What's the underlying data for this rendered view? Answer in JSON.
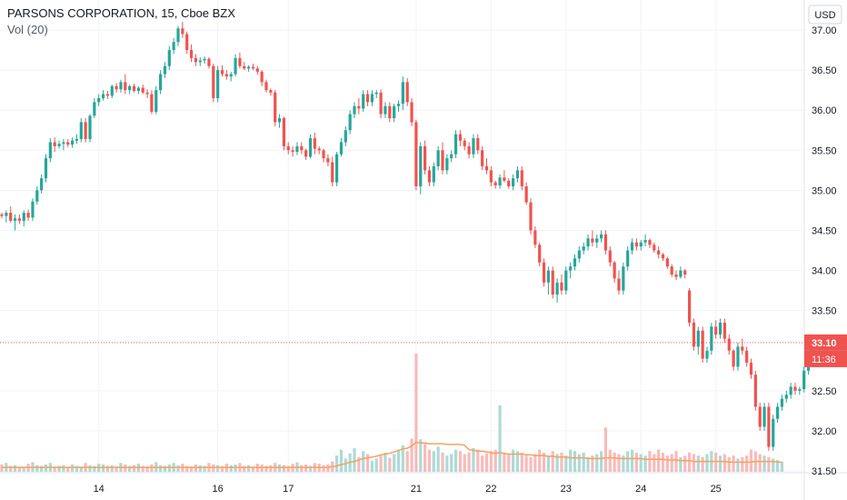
{
  "header": {
    "symbol_line": "PARSONS CORPORATION, 15, Cboe BZX",
    "volume_line": "Vol (20)"
  },
  "price_axis": {
    "currency": "USD",
    "last_price_label": "33.10",
    "countdown_label": "11:36"
  },
  "colors": {
    "up": "#26a69a",
    "down": "#ef5350",
    "up_volume": "#a5d6d0",
    "down_volume": "#f7b4b3",
    "volume_ma": "#f5a25d",
    "grid": "#f0f3fa",
    "price_line": "#ef5350"
  },
  "chart_data": {
    "type": "candlestick",
    "title": "PARSONS CORPORATION, 15, Cboe BZX",
    "currency": "USD",
    "x_tick_labels": [
      "14",
      "16",
      "17",
      "21",
      "22",
      "23",
      "24",
      "25"
    ],
    "y_tick_labels": [
      "37.00",
      "36.50",
      "36.00",
      "35.50",
      "35.00",
      "34.50",
      "34.00",
      "33.50",
      "32.50",
      "32.00",
      "31.50"
    ],
    "ylim": [
      31.5,
      37.1
    ],
    "grid": true,
    "last_price": 33.1,
    "volume_indicator": "Vol (20)",
    "session_starts": [
      {
        "label": "14",
        "index": 22
      },
      {
        "label": "16",
        "index": 49
      },
      {
        "label": "17",
        "index": 65
      },
      {
        "label": "21",
        "index": 94
      },
      {
        "label": "22",
        "index": 111
      },
      {
        "label": "23",
        "index": 128
      },
      {
        "label": "24",
        "index": 145
      },
      {
        "label": "25",
        "index": 162
      }
    ],
    "ohlc": [
      [
        34.7,
        34.72,
        34.65,
        34.68
      ],
      [
        34.68,
        34.75,
        34.6,
        34.72
      ],
      [
        34.72,
        34.8,
        34.6,
        34.62
      ],
      [
        34.62,
        34.7,
        34.5,
        34.65
      ],
      [
        34.65,
        34.7,
        34.58,
        34.62
      ],
      [
        34.62,
        34.75,
        34.55,
        34.72
      ],
      [
        34.72,
        34.76,
        34.62,
        34.66
      ],
      [
        34.66,
        34.9,
        34.62,
        34.86
      ],
      [
        34.86,
        35.05,
        34.82,
        35.0
      ],
      [
        35.0,
        35.2,
        34.96,
        35.15
      ],
      [
        35.15,
        35.45,
        35.1,
        35.4
      ],
      [
        35.4,
        35.65,
        35.35,
        35.6
      ],
      [
        35.6,
        35.66,
        35.48,
        35.55
      ],
      [
        35.55,
        35.62,
        35.52,
        35.58
      ],
      [
        35.58,
        35.64,
        35.5,
        35.6
      ],
      [
        35.6,
        35.64,
        35.54,
        35.57
      ],
      [
        35.57,
        35.66,
        35.53,
        35.62
      ],
      [
        35.62,
        35.7,
        35.58,
        35.64
      ],
      [
        35.64,
        35.9,
        35.6,
        35.85
      ],
      [
        35.85,
        35.9,
        35.6,
        35.64
      ],
      [
        35.64,
        35.95,
        35.6,
        35.93
      ],
      [
        35.93,
        36.15,
        35.9,
        36.1
      ],
      [
        36.1,
        36.2,
        36.05,
        36.15
      ],
      [
        36.15,
        36.25,
        36.12,
        36.2
      ],
      [
        36.2,
        36.24,
        36.14,
        36.18
      ],
      [
        36.18,
        36.32,
        36.15,
        36.3
      ],
      [
        36.3,
        36.34,
        36.22,
        36.26
      ],
      [
        36.26,
        36.38,
        36.22,
        36.35
      ],
      [
        36.35,
        36.45,
        36.2,
        36.25
      ],
      [
        36.25,
        36.32,
        36.2,
        36.3
      ],
      [
        36.3,
        36.33,
        36.22,
        36.24
      ],
      [
        36.24,
        36.3,
        36.2,
        36.28
      ],
      [
        36.28,
        36.32,
        36.2,
        36.22
      ],
      [
        36.22,
        36.26,
        36.15,
        36.2
      ],
      [
        36.2,
        36.25,
        35.95,
        35.98
      ],
      [
        35.98,
        36.3,
        35.95,
        36.25
      ],
      [
        36.25,
        36.5,
        36.2,
        36.45
      ],
      [
        36.45,
        36.6,
        36.4,
        36.55
      ],
      [
        36.55,
        36.8,
        36.5,
        36.75
      ],
      [
        36.75,
        36.9,
        36.7,
        36.85
      ],
      [
        36.85,
        37.05,
        36.8,
        37.02
      ],
      [
        37.02,
        37.1,
        36.9,
        36.95
      ],
      [
        36.95,
        36.98,
        36.7,
        36.75
      ],
      [
        36.75,
        36.82,
        36.6,
        36.65
      ],
      [
        36.65,
        36.7,
        36.55,
        36.6
      ],
      [
        36.6,
        36.66,
        36.55,
        36.62
      ],
      [
        36.62,
        36.67,
        36.58,
        36.64
      ],
      [
        36.64,
        36.66,
        36.52,
        36.55
      ],
      [
        36.55,
        36.58,
        36.1,
        36.15
      ],
      [
        36.15,
        36.55,
        36.1,
        36.5
      ],
      [
        36.5,
        36.56,
        36.42,
        36.45
      ],
      [
        36.45,
        36.5,
        36.38,
        36.42
      ],
      [
        36.42,
        36.48,
        36.36,
        36.45
      ],
      [
        36.45,
        36.7,
        36.42,
        36.65
      ],
      [
        36.65,
        36.72,
        36.52,
        36.55
      ],
      [
        36.55,
        36.6,
        36.5,
        36.52
      ],
      [
        36.52,
        36.56,
        36.48,
        36.54
      ],
      [
        36.54,
        36.58,
        36.5,
        36.52
      ],
      [
        36.52,
        36.55,
        36.44,
        36.48
      ],
      [
        36.48,
        36.5,
        36.3,
        36.35
      ],
      [
        36.35,
        36.38,
        36.22,
        36.25
      ],
      [
        36.25,
        36.27,
        36.18,
        36.22
      ],
      [
        36.22,
        36.25,
        35.8,
        35.85
      ],
      [
        35.85,
        35.95,
        35.78,
        35.9
      ],
      [
        35.9,
        35.92,
        35.5,
        35.55
      ],
      [
        35.55,
        35.6,
        35.45,
        35.5
      ],
      [
        35.5,
        35.55,
        35.42,
        35.48
      ],
      [
        35.48,
        35.6,
        35.44,
        35.55
      ],
      [
        35.55,
        35.6,
        35.45,
        35.5
      ],
      [
        35.5,
        35.52,
        35.38,
        35.42
      ],
      [
        35.42,
        35.7,
        35.4,
        35.65
      ],
      [
        35.65,
        35.72,
        35.45,
        35.52
      ],
      [
        35.52,
        35.55,
        35.45,
        35.5
      ],
      [
        35.5,
        35.52,
        35.35,
        35.4
      ],
      [
        35.4,
        35.45,
        35.3,
        35.35
      ],
      [
        35.35,
        35.42,
        35.05,
        35.1
      ],
      [
        35.1,
        35.48,
        35.05,
        35.45
      ],
      [
        35.45,
        35.65,
        35.42,
        35.6
      ],
      [
        35.6,
        35.8,
        35.55,
        35.75
      ],
      [
        35.75,
        36.0,
        35.7,
        35.95
      ],
      [
        35.95,
        36.1,
        35.9,
        36.05
      ],
      [
        36.05,
        36.15,
        35.95,
        36.02
      ],
      [
        36.02,
        36.25,
        35.98,
        36.2
      ],
      [
        36.2,
        36.25,
        36.05,
        36.1
      ],
      [
        36.1,
        36.25,
        36.05,
        36.2
      ],
      [
        36.2,
        36.25,
        36.15,
        36.22
      ],
      [
        36.22,
        36.26,
        35.9,
        35.95
      ],
      [
        35.95,
        36.1,
        35.9,
        36.05
      ],
      [
        36.05,
        36.1,
        35.85,
        35.9
      ],
      [
        35.9,
        36.08,
        35.85,
        36.05
      ],
      [
        36.05,
        36.12,
        35.98,
        36.08
      ],
      [
        36.08,
        36.42,
        36.0,
        36.35
      ],
      [
        36.35,
        36.4,
        36.05,
        36.1
      ],
      [
        36.1,
        36.15,
        35.8,
        35.85
      ],
      [
        35.85,
        35.88,
        35.0,
        35.05
      ],
      [
        35.05,
        35.6,
        34.95,
        35.55
      ],
      [
        35.55,
        35.62,
        35.2,
        35.25
      ],
      [
        35.25,
        35.3,
        35.05,
        35.1
      ],
      [
        35.1,
        35.35,
        35.05,
        35.3
      ],
      [
        35.3,
        35.55,
        35.25,
        35.5
      ],
      [
        35.5,
        35.6,
        35.2,
        35.25
      ],
      [
        35.25,
        35.45,
        35.2,
        35.4
      ],
      [
        35.4,
        35.5,
        35.35,
        35.45
      ],
      [
        35.45,
        35.75,
        35.4,
        35.7
      ],
      [
        35.7,
        35.75,
        35.55,
        35.62
      ],
      [
        35.62,
        35.65,
        35.5,
        35.55
      ],
      [
        35.55,
        35.6,
        35.4,
        35.45
      ],
      [
        35.45,
        35.7,
        35.4,
        35.65
      ],
      [
        35.65,
        35.7,
        35.45,
        35.5
      ],
      [
        35.5,
        35.55,
        35.25,
        35.3
      ],
      [
        35.3,
        35.4,
        35.2,
        35.25
      ],
      [
        35.25,
        35.3,
        35.05,
        35.1
      ],
      [
        35.1,
        35.12,
        35.02,
        35.06
      ],
      [
        35.06,
        35.2,
        35.02,
        35.16
      ],
      [
        35.16,
        35.25,
        35.1,
        35.12
      ],
      [
        35.12,
        35.15,
        35.02,
        35.05
      ],
      [
        35.05,
        35.2,
        35.0,
        35.15
      ],
      [
        35.15,
        35.3,
        35.1,
        35.25
      ],
      [
        35.25,
        35.3,
        35.0,
        35.05
      ],
      [
        35.05,
        35.1,
        34.82,
        34.85
      ],
      [
        34.85,
        34.9,
        34.45,
        34.5
      ],
      [
        34.5,
        34.55,
        34.28,
        34.32
      ],
      [
        34.32,
        34.35,
        34.05,
        34.1
      ],
      [
        34.1,
        34.15,
        33.8,
        33.85
      ],
      [
        33.85,
        34.05,
        33.7,
        34.0
      ],
      [
        34.0,
        34.05,
        33.65,
        33.7
      ],
      [
        33.7,
        33.9,
        33.6,
        33.85
      ],
      [
        33.85,
        33.95,
        33.7,
        33.75
      ],
      [
        33.75,
        34.05,
        33.7,
        34.0
      ],
      [
        34.0,
        34.1,
        33.9,
        34.05
      ],
      [
        34.05,
        34.2,
        34.0,
        34.15
      ],
      [
        34.15,
        34.3,
        34.1,
        34.25
      ],
      [
        34.25,
        34.35,
        34.2,
        34.3
      ],
      [
        34.3,
        34.45,
        34.25,
        34.4
      ],
      [
        34.4,
        34.5,
        34.3,
        34.35
      ],
      [
        34.35,
        34.45,
        34.28,
        34.4
      ],
      [
        34.4,
        34.5,
        34.35,
        34.45
      ],
      [
        34.45,
        34.5,
        34.2,
        34.25
      ],
      [
        34.25,
        34.3,
        34.05,
        34.1
      ],
      [
        34.1,
        34.12,
        33.85,
        33.9
      ],
      [
        33.9,
        34.0,
        33.7,
        33.75
      ],
      [
        33.75,
        34.1,
        33.7,
        34.05
      ],
      [
        34.05,
        34.3,
        34.0,
        34.25
      ],
      [
        34.25,
        34.4,
        34.2,
        34.35
      ],
      [
        34.35,
        34.4,
        34.25,
        34.3
      ],
      [
        34.3,
        34.38,
        34.25,
        34.35
      ],
      [
        34.35,
        34.45,
        34.3,
        34.38
      ],
      [
        34.38,
        34.4,
        34.28,
        34.32
      ],
      [
        34.32,
        34.35,
        34.22,
        34.25
      ],
      [
        34.25,
        34.3,
        34.15,
        34.2
      ],
      [
        34.2,
        34.22,
        34.12,
        34.15
      ],
      [
        34.15,
        34.17,
        34.02,
        34.05
      ],
      [
        34.05,
        34.08,
        33.92,
        33.95
      ],
      [
        33.95,
        34.0,
        33.88,
        33.92
      ],
      [
        33.92,
        34.05,
        33.9,
        34.0
      ],
      [
        34.0,
        34.02,
        33.9,
        33.95
      ],
      [
        33.75,
        33.78,
        33.3,
        33.35
      ],
      [
        33.35,
        33.4,
        33.0,
        33.05
      ],
      [
        33.05,
        33.3,
        32.95,
        33.25
      ],
      [
        33.25,
        33.3,
        32.85,
        32.9
      ],
      [
        32.9,
        33.05,
        32.85,
        33.0
      ],
      [
        33.0,
        33.35,
        32.95,
        33.3
      ],
      [
        33.3,
        33.38,
        33.15,
        33.2
      ],
      [
        33.2,
        33.4,
        33.15,
        33.35
      ],
      [
        33.35,
        33.4,
        33.1,
        33.15
      ],
      [
        33.15,
        33.2,
        32.95,
        33.0
      ],
      [
        33.0,
        33.02,
        32.75,
        32.8
      ],
      [
        32.8,
        33.1,
        32.75,
        33.05
      ],
      [
        33.05,
        33.15,
        32.95,
        33.0
      ],
      [
        33.0,
        33.05,
        32.8,
        32.85
      ],
      [
        32.85,
        32.9,
        32.65,
        32.7
      ],
      [
        32.7,
        32.75,
        32.25,
        32.3
      ],
      [
        32.3,
        32.35,
        32.0,
        32.05
      ],
      [
        32.05,
        32.35,
        32.0,
        32.3
      ],
      [
        32.3,
        32.35,
        31.75,
        31.8
      ],
      [
        31.8,
        32.2,
        31.75,
        32.15
      ],
      [
        32.15,
        32.35,
        32.1,
        32.3
      ],
      [
        32.3,
        32.45,
        32.25,
        32.4
      ],
      [
        32.4,
        32.5,
        32.35,
        32.45
      ],
      [
        32.45,
        32.6,
        32.4,
        32.55
      ],
      [
        32.55,
        32.6,
        32.45,
        32.5
      ],
      [
        32.5,
        32.55,
        32.45,
        32.52
      ],
      [
        32.52,
        32.8,
        32.48,
        32.75
      ],
      [
        32.75,
        32.95,
        32.7,
        32.9
      ],
      [
        32.9,
        33.1,
        32.85,
        33.05
      ],
      [
        33.05,
        33.12,
        33.0,
        33.1
      ]
    ],
    "volume": [
      10,
      12,
      8,
      9,
      6,
      7,
      11,
      13,
      9,
      8,
      10,
      12,
      7,
      8,
      9,
      6,
      10,
      8,
      7,
      12,
      9,
      8,
      11,
      10,
      8,
      9,
      7,
      12,
      10,
      8,
      9,
      11,
      8,
      7,
      10,
      13,
      9,
      8,
      10,
      12,
      9,
      11,
      8,
      7,
      10,
      9,
      8,
      12,
      10,
      9,
      8,
      11,
      9,
      10,
      12,
      8,
      9,
      7,
      11,
      10,
      8,
      9,
      12,
      10,
      9,
      8,
      11,
      13,
      9,
      10,
      8,
      12,
      11,
      9,
      10,
      14,
      22,
      30,
      18,
      25,
      32,
      20,
      28,
      24,
      15,
      18,
      22,
      26,
      19,
      24,
      30,
      36,
      28,
      45,
      160,
      44,
      38,
      30,
      28,
      34,
      26,
      22,
      24,
      30,
      28,
      24,
      26,
      32,
      30,
      22,
      25,
      28,
      30,
      90,
      26,
      24,
      30,
      28,
      26,
      22,
      20,
      24,
      30,
      26,
      22,
      28,
      24,
      26,
      22,
      30,
      28,
      24,
      26,
      20,
      22,
      24,
      28,
      60,
      30,
      26,
      24,
      22,
      28,
      30,
      26,
      24,
      22,
      28,
      24,
      30,
      26,
      22,
      24,
      28,
      20,
      22,
      26,
      24,
      22,
      20,
      24,
      28,
      26,
      22,
      24,
      20,
      22,
      18,
      20,
      22,
      30,
      28,
      24,
      22,
      20,
      18,
      16,
      14
    ],
    "volume_ma20": [
      6,
      6,
      6,
      6,
      6,
      6,
      6,
      6,
      6,
      6,
      6,
      6,
      6,
      6,
      6,
      6,
      6,
      6,
      6,
      6,
      6,
      6,
      6,
      6,
      6,
      6,
      6,
      6,
      6,
      6,
      6,
      6,
      6,
      6,
      6,
      6,
      6,
      6,
      6,
      6,
      6,
      6,
      6,
      6,
      6,
      6,
      6,
      6,
      6,
      6,
      6,
      6,
      6,
      6,
      6,
      6,
      6,
      6,
      6,
      6,
      6,
      6,
      6,
      6,
      6,
      6,
      6,
      6,
      6,
      6,
      6,
      6,
      6,
      6,
      6,
      7,
      8,
      10,
      11,
      13,
      14,
      16,
      18,
      19,
      20,
      21,
      23,
      24,
      25,
      27,
      29,
      31,
      32,
      35,
      40,
      39,
      39,
      38,
      38,
      38,
      38,
      37,
      37,
      37,
      37,
      36,
      30,
      29,
      28,
      28,
      27,
      26,
      25,
      26,
      25,
      24,
      24,
      24,
      24,
      23,
      23,
      22,
      22,
      22,
      21,
      21,
      20,
      20,
      20,
      19,
      19,
      19,
      19,
      18,
      18,
      18,
      18,
      19,
      19,
      19,
      18,
      18,
      18,
      18,
      18,
      18,
      17,
      17,
      17,
      17,
      17,
      16,
      16,
      16,
      15,
      15,
      15,
      14,
      14,
      14,
      14,
      14,
      14,
      14,
      14,
      13,
      13,
      13,
      13,
      13,
      13,
      14,
      14,
      14,
      14,
      14,
      13,
      13
    ],
    "volume_scale_max": 160
  }
}
